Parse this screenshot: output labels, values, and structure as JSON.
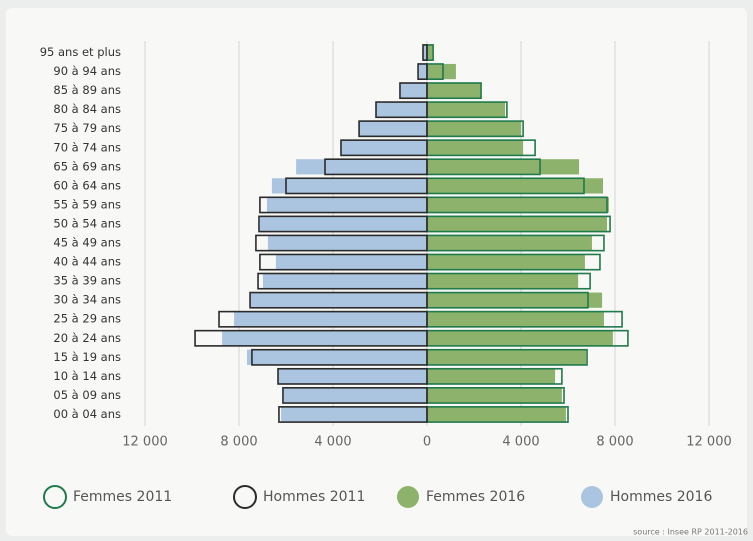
{
  "chart_data": {
    "type": "population-pyramid",
    "categories": [
      "95 ans et plus",
      "90 à 94 ans",
      "85 à 89 ans",
      "80 à 84 ans",
      "75 à 79 ans",
      "70 à 74 ans",
      "65 à 69 ans",
      "60 à 64 ans",
      "55 à 59 ans",
      "50 à 54 ans",
      "45 à 49 ans",
      "40 à 44 ans",
      "35 à 39 ans",
      "30 à 34 ans",
      "25 à 29 ans",
      "20 à 24 ans",
      "15 à 19 ans",
      "10 à 14 ans",
      "05 à 09 ans",
      "00 à 04 ans"
    ],
    "series": [
      {
        "name": "Femmes 2011",
        "color": "#1f7a4c",
        "style": "outline",
        "side": "right",
        "values": [
          260,
          680,
          2300,
          3400,
          4090,
          4600,
          4810,
          6680,
          7660,
          7790,
          7530,
          7360,
          6940,
          6850,
          8300,
          8550,
          6810,
          5740,
          5830,
          6000
        ]
      },
      {
        "name": "Hommes 2011",
        "color": "#2b2b2b",
        "style": "outline",
        "side": "left",
        "values": [
          170,
          380,
          1150,
          2170,
          2890,
          3660,
          4340,
          6000,
          7110,
          7150,
          7280,
          7110,
          7190,
          7530,
          8850,
          9870,
          7450,
          6340,
          6130,
          6300
        ]
      },
      {
        "name": "Femmes 2016",
        "color": "#8db26b",
        "style": "fill",
        "side": "right",
        "values": [
          260,
          1230,
          2300,
          3320,
          4000,
          4090,
          6470,
          7490,
          7740,
          7660,
          7020,
          6720,
          6430,
          7450,
          7530,
          7910,
          6770,
          5450,
          5740,
          5910
        ]
      },
      {
        "name": "Hommes 2016",
        "color": "#abc5e0",
        "style": "fill",
        "side": "left",
        "values": [
          170,
          340,
          1150,
          2170,
          2890,
          3660,
          5570,
          6600,
          6810,
          7110,
          6770,
          6430,
          6980,
          7530,
          8210,
          8720,
          7660,
          6340,
          6130,
          6210
        ]
      }
    ],
    "xlim": [
      -12000,
      12000
    ],
    "xticks": [
      {
        "value": -12000,
        "label": "12 000"
      },
      {
        "value": -8000,
        "label": "8 000"
      },
      {
        "value": -4000,
        "label": "4 000"
      },
      0,
      {
        "value": 4000,
        "label": "4 000"
      },
      {
        "value": 8000,
        "label": "8 000"
      },
      {
        "value": 12000,
        "label": "12 000"
      }
    ],
    "grid": true,
    "source": "source : Insee RP 2011-2016"
  }
}
